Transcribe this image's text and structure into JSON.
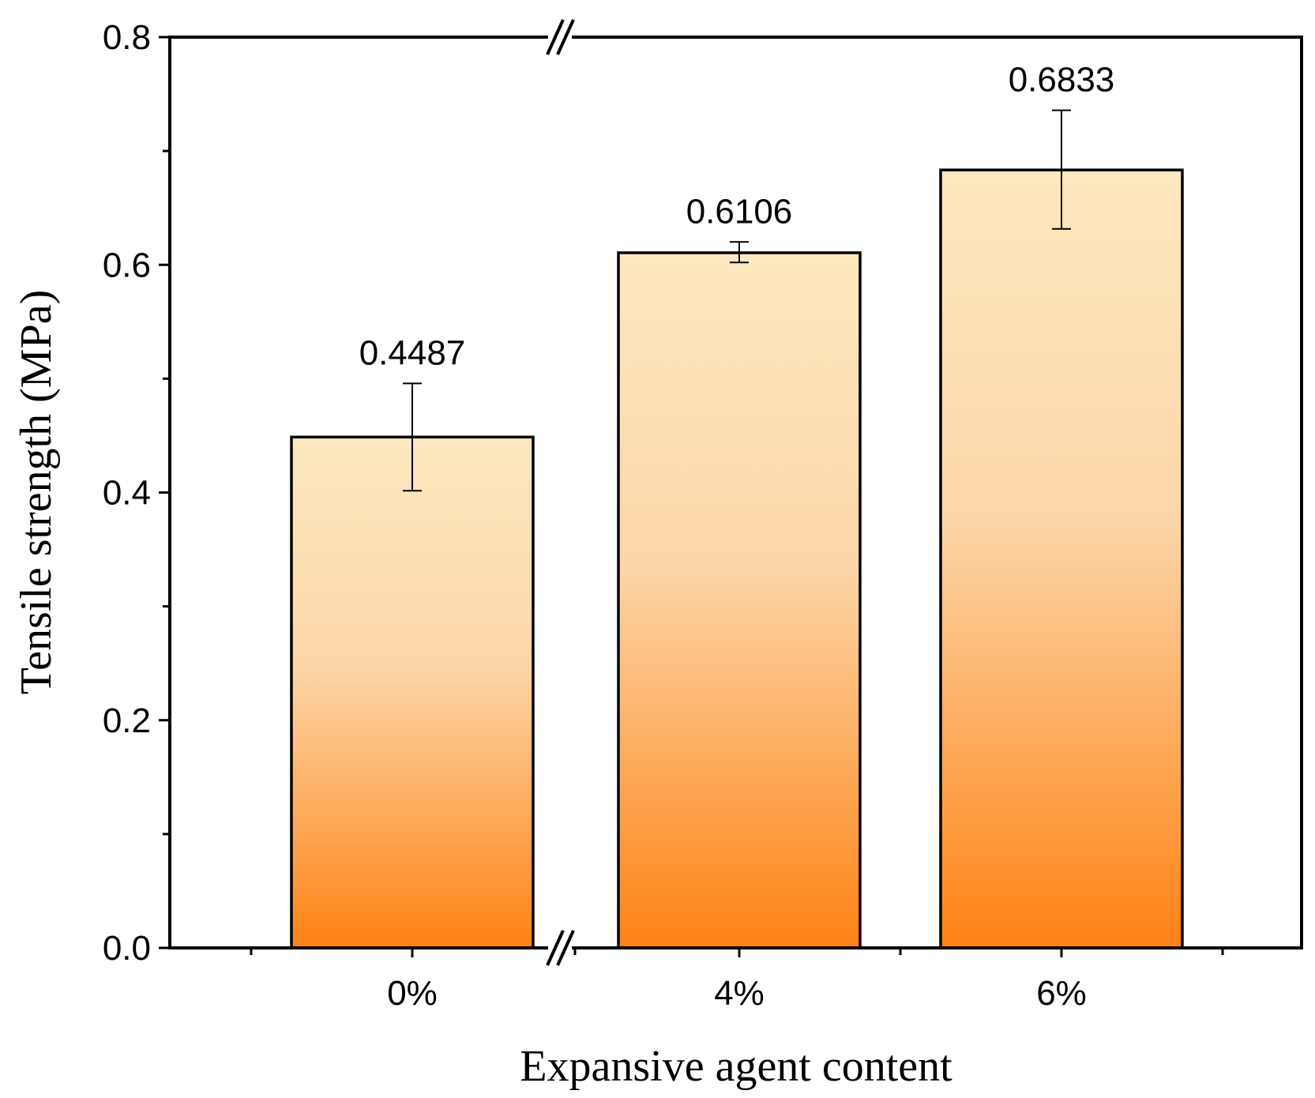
{
  "chart_data": {
    "type": "bar",
    "categories": [
      "0%",
      "4%",
      "6%"
    ],
    "values": [
      0.4487,
      0.6106,
      0.6833
    ],
    "value_labels": [
      "0.4487",
      "0.6106",
      "0.6833"
    ],
    "error_bars": [
      {
        "low": 0.4016,
        "high": 0.4958
      },
      {
        "low": 0.6021,
        "high": 0.6201
      },
      {
        "low": 0.6316,
        "high": 0.7357
      }
    ],
    "xlabel": "Expansive agent content",
    "ylabel": "Tensile strength (MPa)",
    "ylim": [
      0,
      0.8
    ],
    "y_ticks": [
      "0.0",
      "0.2",
      "0.4",
      "0.6",
      "0.8"
    ],
    "axis_break": true,
    "bar_gradient": {
      "top": "#fde8c0",
      "bottom": "#ff8214"
    }
  }
}
